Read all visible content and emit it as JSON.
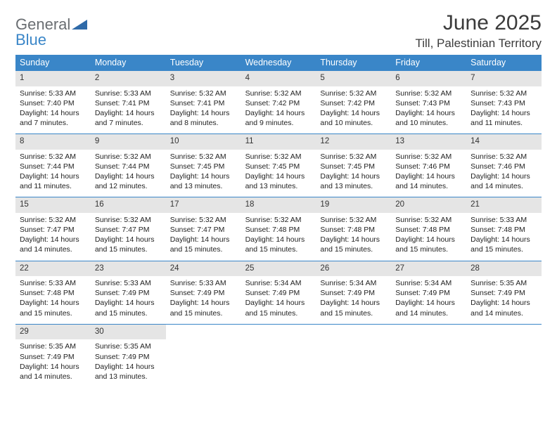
{
  "logo": {
    "word1": "General",
    "word2": "Blue"
  },
  "title": "June 2025",
  "location": "Till, Palestinian Territory",
  "colors": {
    "header_bg": "#3a86c8",
    "daynum_bg": "#e5e5e5",
    "text": "#222222",
    "logo_gray": "#6a6e72",
    "logo_blue": "#3a86c8"
  },
  "days_of_week": [
    "Sunday",
    "Monday",
    "Tuesday",
    "Wednesday",
    "Thursday",
    "Friday",
    "Saturday"
  ],
  "weeks": [
    [
      {
        "n": "1",
        "sr": "Sunrise: 5:33 AM",
        "ss": "Sunset: 7:40 PM",
        "d1": "Daylight: 14 hours",
        "d2": "and 7 minutes."
      },
      {
        "n": "2",
        "sr": "Sunrise: 5:33 AM",
        "ss": "Sunset: 7:41 PM",
        "d1": "Daylight: 14 hours",
        "d2": "and 7 minutes."
      },
      {
        "n": "3",
        "sr": "Sunrise: 5:32 AM",
        "ss": "Sunset: 7:41 PM",
        "d1": "Daylight: 14 hours",
        "d2": "and 8 minutes."
      },
      {
        "n": "4",
        "sr": "Sunrise: 5:32 AM",
        "ss": "Sunset: 7:42 PM",
        "d1": "Daylight: 14 hours",
        "d2": "and 9 minutes."
      },
      {
        "n": "5",
        "sr": "Sunrise: 5:32 AM",
        "ss": "Sunset: 7:42 PM",
        "d1": "Daylight: 14 hours",
        "d2": "and 10 minutes."
      },
      {
        "n": "6",
        "sr": "Sunrise: 5:32 AM",
        "ss": "Sunset: 7:43 PM",
        "d1": "Daylight: 14 hours",
        "d2": "and 10 minutes."
      },
      {
        "n": "7",
        "sr": "Sunrise: 5:32 AM",
        "ss": "Sunset: 7:43 PM",
        "d1": "Daylight: 14 hours",
        "d2": "and 11 minutes."
      }
    ],
    [
      {
        "n": "8",
        "sr": "Sunrise: 5:32 AM",
        "ss": "Sunset: 7:44 PM",
        "d1": "Daylight: 14 hours",
        "d2": "and 11 minutes."
      },
      {
        "n": "9",
        "sr": "Sunrise: 5:32 AM",
        "ss": "Sunset: 7:44 PM",
        "d1": "Daylight: 14 hours",
        "d2": "and 12 minutes."
      },
      {
        "n": "10",
        "sr": "Sunrise: 5:32 AM",
        "ss": "Sunset: 7:45 PM",
        "d1": "Daylight: 14 hours",
        "d2": "and 13 minutes."
      },
      {
        "n": "11",
        "sr": "Sunrise: 5:32 AM",
        "ss": "Sunset: 7:45 PM",
        "d1": "Daylight: 14 hours",
        "d2": "and 13 minutes."
      },
      {
        "n": "12",
        "sr": "Sunrise: 5:32 AM",
        "ss": "Sunset: 7:45 PM",
        "d1": "Daylight: 14 hours",
        "d2": "and 13 minutes."
      },
      {
        "n": "13",
        "sr": "Sunrise: 5:32 AM",
        "ss": "Sunset: 7:46 PM",
        "d1": "Daylight: 14 hours",
        "d2": "and 14 minutes."
      },
      {
        "n": "14",
        "sr": "Sunrise: 5:32 AM",
        "ss": "Sunset: 7:46 PM",
        "d1": "Daylight: 14 hours",
        "d2": "and 14 minutes."
      }
    ],
    [
      {
        "n": "15",
        "sr": "Sunrise: 5:32 AM",
        "ss": "Sunset: 7:47 PM",
        "d1": "Daylight: 14 hours",
        "d2": "and 14 minutes."
      },
      {
        "n": "16",
        "sr": "Sunrise: 5:32 AM",
        "ss": "Sunset: 7:47 PM",
        "d1": "Daylight: 14 hours",
        "d2": "and 15 minutes."
      },
      {
        "n": "17",
        "sr": "Sunrise: 5:32 AM",
        "ss": "Sunset: 7:47 PM",
        "d1": "Daylight: 14 hours",
        "d2": "and 15 minutes."
      },
      {
        "n": "18",
        "sr": "Sunrise: 5:32 AM",
        "ss": "Sunset: 7:48 PM",
        "d1": "Daylight: 14 hours",
        "d2": "and 15 minutes."
      },
      {
        "n": "19",
        "sr": "Sunrise: 5:32 AM",
        "ss": "Sunset: 7:48 PM",
        "d1": "Daylight: 14 hours",
        "d2": "and 15 minutes."
      },
      {
        "n": "20",
        "sr": "Sunrise: 5:32 AM",
        "ss": "Sunset: 7:48 PM",
        "d1": "Daylight: 14 hours",
        "d2": "and 15 minutes."
      },
      {
        "n": "21",
        "sr": "Sunrise: 5:33 AM",
        "ss": "Sunset: 7:48 PM",
        "d1": "Daylight: 14 hours",
        "d2": "and 15 minutes."
      }
    ],
    [
      {
        "n": "22",
        "sr": "Sunrise: 5:33 AM",
        "ss": "Sunset: 7:48 PM",
        "d1": "Daylight: 14 hours",
        "d2": "and 15 minutes."
      },
      {
        "n": "23",
        "sr": "Sunrise: 5:33 AM",
        "ss": "Sunset: 7:49 PM",
        "d1": "Daylight: 14 hours",
        "d2": "and 15 minutes."
      },
      {
        "n": "24",
        "sr": "Sunrise: 5:33 AM",
        "ss": "Sunset: 7:49 PM",
        "d1": "Daylight: 14 hours",
        "d2": "and 15 minutes."
      },
      {
        "n": "25",
        "sr": "Sunrise: 5:34 AM",
        "ss": "Sunset: 7:49 PM",
        "d1": "Daylight: 14 hours",
        "d2": "and 15 minutes."
      },
      {
        "n": "26",
        "sr": "Sunrise: 5:34 AM",
        "ss": "Sunset: 7:49 PM",
        "d1": "Daylight: 14 hours",
        "d2": "and 15 minutes."
      },
      {
        "n": "27",
        "sr": "Sunrise: 5:34 AM",
        "ss": "Sunset: 7:49 PM",
        "d1": "Daylight: 14 hours",
        "d2": "and 14 minutes."
      },
      {
        "n": "28",
        "sr": "Sunrise: 5:35 AM",
        "ss": "Sunset: 7:49 PM",
        "d1": "Daylight: 14 hours",
        "d2": "and 14 minutes."
      }
    ],
    [
      {
        "n": "29",
        "sr": "Sunrise: 5:35 AM",
        "ss": "Sunset: 7:49 PM",
        "d1": "Daylight: 14 hours",
        "d2": "and 14 minutes."
      },
      {
        "n": "30",
        "sr": "Sunrise: 5:35 AM",
        "ss": "Sunset: 7:49 PM",
        "d1": "Daylight: 14 hours",
        "d2": "and 13 minutes."
      },
      null,
      null,
      null,
      null,
      null
    ]
  ]
}
